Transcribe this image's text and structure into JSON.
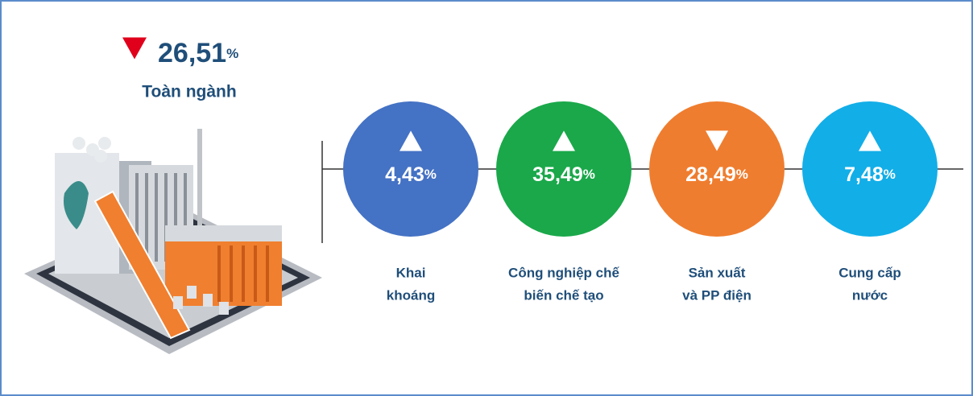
{
  "summary": {
    "value": "26,51",
    "unit": "%",
    "trend": "down",
    "label": "Toàn ngành"
  },
  "sectors": [
    {
      "value": "4,43",
      "unit": "%",
      "trend": "up",
      "color": "#4472c4",
      "label": [
        "Khai",
        "khoáng"
      ]
    },
    {
      "value": "35,49",
      "unit": "%",
      "trend": "up",
      "color": "#1aa84a",
      "label": [
        "Công nghiệp chế",
        "biến chế tạo"
      ]
    },
    {
      "value": "28,49",
      "unit": "%",
      "trend": "down",
      "color": "#ef7d2f",
      "label": [
        "Sản xuất",
        "và PP điện"
      ]
    },
    {
      "value": "7,48",
      "unit": "%",
      "trend": "up",
      "color": "#12aee8",
      "label": [
        "Cung cấp",
        "nước"
      ]
    }
  ]
}
